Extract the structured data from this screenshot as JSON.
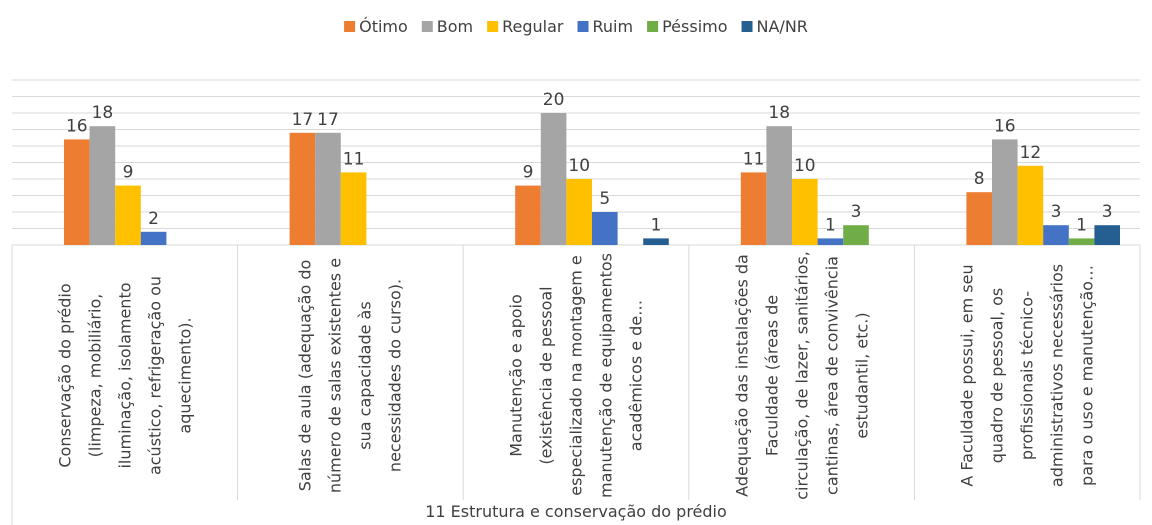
{
  "chart_data": {
    "type": "bar",
    "x_label": "11 Estrutura e conservação do prédio",
    "categories": [
      "Conservação do prédio (limpeza, mobiliário, iluminação, isolamento acústico, refrigeração ou aquecimento).",
      "Salas de aula (adequação do número de salas existentes e sua capacidade às necessidades do curso).",
      "Manutenção e apoio (existência de pessoal especializado na montagem e manutenção de equipamentos acadêmicos e de…",
      "Adequação das instalações da Faculdade (áreas de circulação, de lazer, sanitários, cantinas, área de convivência estudantil, etc.)",
      "A Faculdade possui, em seu quadro de pessoal, os profissionais técnico-administrativos necessários para o uso e manutenção…"
    ],
    "series": [
      {
        "name": "Ótimo",
        "color": "#ED7D31",
        "values": [
          16,
          17,
          9,
          11,
          8
        ]
      },
      {
        "name": "Bom",
        "color": "#A5A5A5",
        "values": [
          18,
          17,
          20,
          18,
          16
        ]
      },
      {
        "name": "Regular",
        "color": "#FFC000",
        "values": [
          9,
          11,
          10,
          10,
          12
        ]
      },
      {
        "name": "Ruim",
        "color": "#4472C4",
        "values": [
          2,
          null,
          5,
          1,
          3
        ]
      },
      {
        "name": "Péssimo",
        "color": "#70AD47",
        "values": [
          null,
          null,
          null,
          3,
          1
        ]
      },
      {
        "name": "NA/NR",
        "color": "#255E91",
        "values": [
          null,
          null,
          1,
          null,
          3
        ]
      }
    ],
    "ylim": [
      0,
      25
    ],
    "yticks": [
      0,
      2.5,
      5,
      7.5,
      10,
      12.5,
      15,
      17.5,
      20,
      22.5,
      25
    ],
    "grid": true,
    "legend": "top"
  }
}
